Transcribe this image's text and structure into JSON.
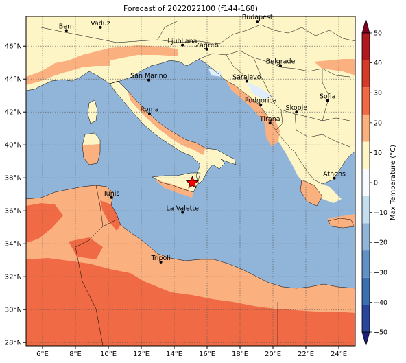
{
  "title": "Forecast of 2022022100 (f144-168)",
  "map": {
    "lon_range": [
      5,
      25
    ],
    "lat_range": [
      27.8,
      47.8
    ],
    "lon_ticks": [
      "6°E",
      "8°E",
      "10°E",
      "12°E",
      "14°E",
      "16°E",
      "18°E",
      "20°E",
      "22°E",
      "24°E"
    ],
    "lon_tick_values": [
      6,
      8,
      10,
      12,
      14,
      16,
      18,
      20,
      22,
      24
    ],
    "lat_ticks": [
      "28°N",
      "30°N",
      "32°N",
      "34°N",
      "36°N",
      "38°N",
      "40°N",
      "42°N",
      "44°N",
      "46°N"
    ],
    "lat_tick_values": [
      28,
      30,
      32,
      34,
      36,
      38,
      40,
      42,
      44,
      46
    ],
    "grid": true,
    "colors": {
      "sea": "#91b4d9",
      "land_warm": "#fdf5c6",
      "band_10_20": "#fbb080",
      "band_20_30": "#ef6a45",
      "coast": "#000000"
    },
    "cities": [
      {
        "name": "Bern",
        "lon": 7.45,
        "lat": 46.95
      },
      {
        "name": "Vaduz",
        "lon": 9.52,
        "lat": 47.14
      },
      {
        "name": "Budapest",
        "lon": 19.05,
        "lat": 47.5
      },
      {
        "name": "Ljubljana",
        "lon": 14.5,
        "lat": 46.06
      },
      {
        "name": "Zagreb",
        "lon": 15.98,
        "lat": 45.81
      },
      {
        "name": "Belgrade",
        "lon": 20.46,
        "lat": 44.82
      },
      {
        "name": "San Marino",
        "lon": 12.45,
        "lat": 43.94
      },
      {
        "name": "Sarajevo",
        "lon": 18.41,
        "lat": 43.86
      },
      {
        "name": "Sofia",
        "lon": 23.32,
        "lat": 42.7
      },
      {
        "name": "Podgorica",
        "lon": 19.26,
        "lat": 42.44
      },
      {
        "name": "Skopje",
        "lon": 21.43,
        "lat": 42.0
      },
      {
        "name": "Roma",
        "lon": 12.5,
        "lat": 41.9
      },
      {
        "name": "Tirana",
        "lon": 19.82,
        "lat": 41.33
      },
      {
        "name": "Athens",
        "lon": 23.73,
        "lat": 37.98
      },
      {
        "name": "Tunis",
        "lon": 10.18,
        "lat": 36.81
      },
      {
        "name": "La Valette",
        "lon": 14.51,
        "lat": 35.9
      },
      {
        "name": "Tripoli",
        "lon": 13.19,
        "lat": 32.89
      }
    ],
    "marker": {
      "type": "star",
      "lon": 15.1,
      "lat": 37.7,
      "color": "#ff0000"
    }
  },
  "colorbar": {
    "label": "Max Temperature (°C)",
    "ticks": [
      -50,
      -40,
      -30,
      -20,
      -10,
      0,
      10,
      20,
      30,
      40,
      50
    ],
    "tick_labels": [
      "−50",
      "−40",
      "−30",
      "−20",
      "−10",
      "0",
      "10",
      "20",
      "30",
      "40",
      "50"
    ],
    "colors": [
      "#1f1f7a",
      "#29459b",
      "#3a6fb0",
      "#6190c4",
      "#91b4d9",
      "#c4def0",
      "#f7fbff",
      "#fdf5c6",
      "#fbb080",
      "#ef6a45",
      "#d63b2a",
      "#b01a1e",
      "#7f0020"
    ],
    "extend": "both"
  }
}
